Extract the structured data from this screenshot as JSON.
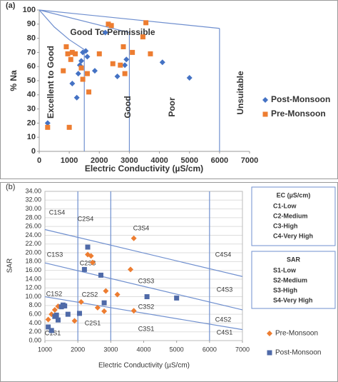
{
  "chart_data": [
    {
      "type": "scatter",
      "panel_label": "(a)",
      "x_label": "Electric Conductivity (µS/cm)",
      "y_label": "% Na",
      "xlim": [
        0,
        7000
      ],
      "xticks": [
        0,
        1000,
        2000,
        3000,
        4000,
        5000,
        6000,
        7000
      ],
      "ylim": [
        0,
        100
      ],
      "yticks": [
        0,
        10,
        20,
        30,
        40,
        50,
        60,
        70,
        80,
        90,
        100
      ],
      "grid": false,
      "legend": "right",
      "annotations": [
        "Good To Permissible",
        "Excellent to Good",
        "Good",
        "Poor",
        "Unsuitable"
      ],
      "series": [
        {
          "name": "Post-Monsoon",
          "color": "#4472c4",
          "marker": "diamond",
          "x": [
            280,
            1100,
            1250,
            1300,
            1350,
            1400,
            1450,
            1550,
            1600,
            1850,
            2200,
            2600,
            2850,
            2900,
            4100,
            5000
          ],
          "values": [
            20,
            48,
            38,
            55,
            61,
            64,
            70,
            71,
            67,
            57,
            84,
            53,
            61,
            65,
            63,
            52
          ]
        },
        {
          "name": "Pre-Monsoon",
          "color": "#ed7d31",
          "marker": "square",
          "x": [
            280,
            800,
            900,
            950,
            1000,
            1050,
            1100,
            1200,
            1400,
            1450,
            1600,
            1650,
            2000,
            2300,
            2400,
            2450,
            2700,
            2800,
            2850,
            3100,
            3450,
            3550,
            3700
          ],
          "values": [
            17,
            57,
            74,
            69,
            17,
            65,
            70,
            69,
            59,
            51,
            55,
            42,
            69,
            90,
            89,
            62,
            61,
            74,
            55,
            70,
            81,
            91,
            69
          ]
        }
      ]
    },
    {
      "type": "scatter",
      "panel_label": "(b)",
      "x_label": "Electric Conductivity (µS/cm)",
      "y_label": "SAR",
      "xlim": [
        1000,
        7000
      ],
      "xticks": [
        1000,
        2000,
        3000,
        4000,
        5000,
        6000,
        7000
      ],
      "ylim": [
        0,
        34
      ],
      "yticks": [
        {
          "value": 0,
          "label": "0.00"
        },
        {
          "value": 2,
          "label": "2.00"
        },
        {
          "value": 4,
          "label": "4.00"
        },
        {
          "value": 6,
          "label": "6.00"
        },
        {
          "value": 8,
          "label": "8.00"
        },
        {
          "value": 10,
          "label": "10.00"
        },
        {
          "value": 12,
          "label": "12.00"
        },
        {
          "value": 14,
          "label": "14.00"
        },
        {
          "value": 16,
          "label": "16.00"
        },
        {
          "value": 18,
          "label": "18.00"
        },
        {
          "value": 20,
          "label": "20.00"
        },
        {
          "value": 22,
          "label": "22.00"
        },
        {
          "value": 24,
          "label": "24.00"
        },
        {
          "value": 26,
          "label": "26.00"
        },
        {
          "value": 28,
          "label": "28.00"
        },
        {
          "value": 30,
          "label": "30.00"
        },
        {
          "value": 32,
          "label": "32.00"
        },
        {
          "value": 34,
          "label": "34.00"
        }
      ],
      "grid": true,
      "legend": "bottom-right",
      "annotations": [
        "C1S4",
        "C2S4",
        "C3S4",
        "C4S4",
        "C1S3",
        "C2S3",
        "C3S3",
        "C4S3",
        "C1S2",
        "C2S2",
        "C3S2",
        "C4S2",
        "C1S1",
        "C2S1",
        "C3S1",
        "C4S1"
      ],
      "ec_legend": {
        "title": "EC (µS/cm)",
        "items": [
          "C1-Low",
          "C2-Medium",
          "C3-High",
          "C4-Very High"
        ]
      },
      "sar_legend": {
        "title": "SAR",
        "items": [
          "S1-Low",
          "S2-Medium",
          "S3-High",
          "S4-Very High"
        ]
      },
      "series": [
        {
          "name": "Pre-Monsoon",
          "color": "#ed7d31",
          "marker": "diamond",
          "x": [
            1100,
            1200,
            1300,
            1400,
            1900,
            2100,
            2300,
            2400,
            2450,
            2600,
            2800,
            2850,
            3200,
            3600,
            3700,
            3700
          ],
          "values": [
            4.8,
            6.0,
            7.0,
            7.8,
            4.5,
            8.8,
            19.6,
            19.3,
            17.8,
            7.5,
            6.7,
            11.3,
            10.5,
            16.2,
            23.3,
            6.8
          ]
        },
        {
          "name": "Post-Monsoon",
          "color": "#4f6aa8",
          "marker": "square",
          "x": [
            1100,
            1200,
            1300,
            1350,
            1400,
            1500,
            1550,
            1600,
            1700,
            2050,
            2200,
            2300,
            2700,
            2800,
            4100,
            5000
          ],
          "values": [
            3.1,
            2.3,
            5.5,
            5.8,
            4.7,
            7.7,
            8.1,
            7.9,
            6.0,
            6.2,
            16.2,
            21.3,
            14.9,
            8.6,
            10.0,
            9.7
          ]
        }
      ]
    }
  ]
}
